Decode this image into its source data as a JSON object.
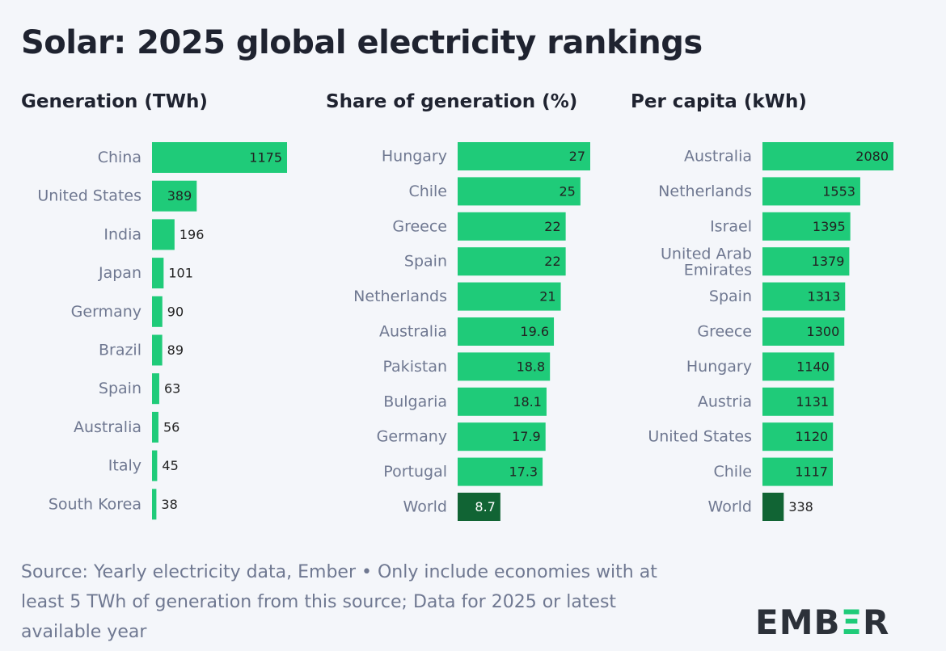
{
  "title": "Solar: 2025 global electricity rankings",
  "colors": {
    "bar": "#1fcb79",
    "world_bar": "#116434",
    "label": "#6f7891",
    "value": "#222222"
  },
  "chart_data": [
    {
      "type": "bar",
      "orientation": "horizontal",
      "title": "Generation (TWh)",
      "categories": [
        "China",
        "United States",
        "India",
        "Japan",
        "Germany",
        "Brazil",
        "Spain",
        "Australia",
        "Italy",
        "South Korea"
      ],
      "values": [
        1175,
        389,
        196,
        101,
        90,
        89,
        63,
        56,
        45,
        38
      ],
      "value_labels": [
        "1175",
        "389",
        "196",
        "101",
        "90",
        "89",
        "63",
        "56",
        "45",
        "38"
      ],
      "xlim": [
        0,
        1175
      ]
    },
    {
      "type": "bar",
      "orientation": "horizontal",
      "title": "Share of generation (%)",
      "categories": [
        "Hungary",
        "Chile",
        "Greece",
        "Spain",
        "Netherlands",
        "Australia",
        "Pakistan",
        "Bulgaria",
        "Germany",
        "Portugal",
        "World"
      ],
      "values": [
        27,
        25,
        22,
        22,
        21,
        19.6,
        18.8,
        18.1,
        17.9,
        17.3,
        8.7
      ],
      "value_labels": [
        "27",
        "25",
        "22",
        "22",
        "21",
        "19.6",
        "18.8",
        "18.1",
        "17.9",
        "17.3",
        "8.7"
      ],
      "highlight": [
        "World"
      ],
      "xlim": [
        0,
        27
      ]
    },
    {
      "type": "bar",
      "orientation": "horizontal",
      "title": "Per capita (kWh)",
      "categories": [
        "Australia",
        "Netherlands",
        "Israel",
        "United Arab Emirates",
        "Spain",
        "Greece",
        "Hungary",
        "Austria",
        "United States",
        "Chile",
        "World"
      ],
      "values": [
        2080,
        1553,
        1395,
        1379,
        1313,
        1300,
        1140,
        1131,
        1120,
        1117,
        338
      ],
      "value_labels": [
        "2080",
        "1553",
        "1395",
        "1379",
        "1313",
        "1300",
        "1140",
        "1131",
        "1120",
        "1117",
        "338"
      ],
      "highlight": [
        "World"
      ],
      "xlim": [
        0,
        2080
      ]
    }
  ],
  "footnote": "Source: Yearly electricity data, Ember • Only include economies with at least 5 TWh of generation from this source; Data for 2025 or latest available year",
  "logo": {
    "part1": "EMB",
    "part2": "Ξ",
    "part3": "R"
  }
}
